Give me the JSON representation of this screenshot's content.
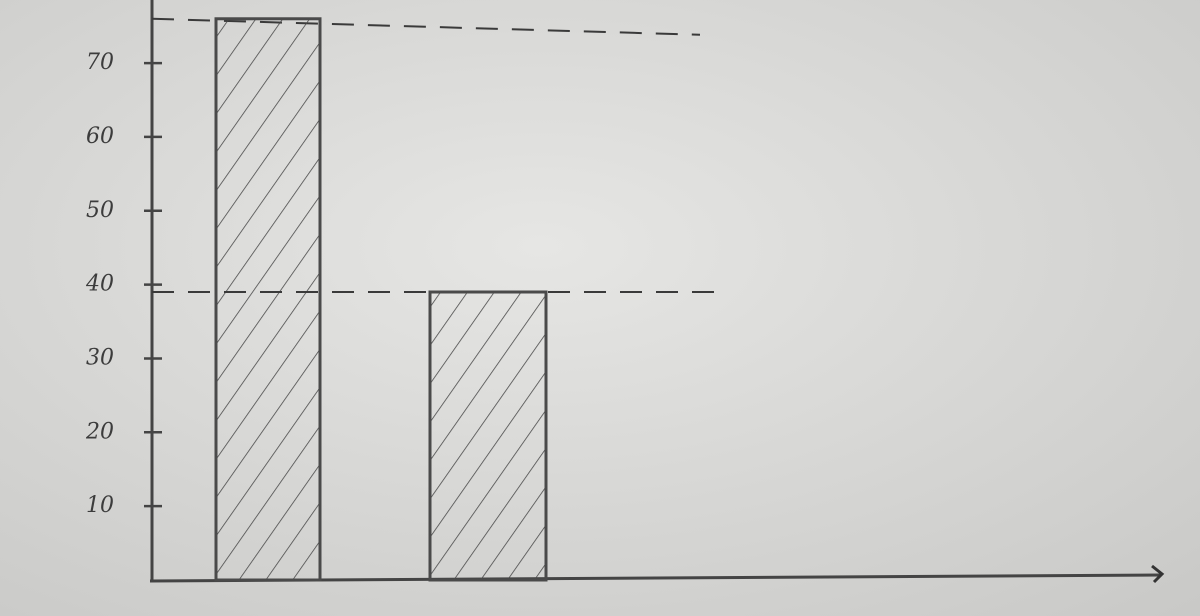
{
  "chart_data": {
    "type": "bar",
    "categories": [
      null,
      null
    ],
    "values": [
      76,
      39
    ],
    "color": "#4a4a4a",
    "ylim": [
      0,
      78
    ],
    "yticks": [
      10,
      20,
      30,
      40,
      50,
      60,
      70
    ],
    "grid": false,
    "hatch": true,
    "reference_lines": true
  }
}
